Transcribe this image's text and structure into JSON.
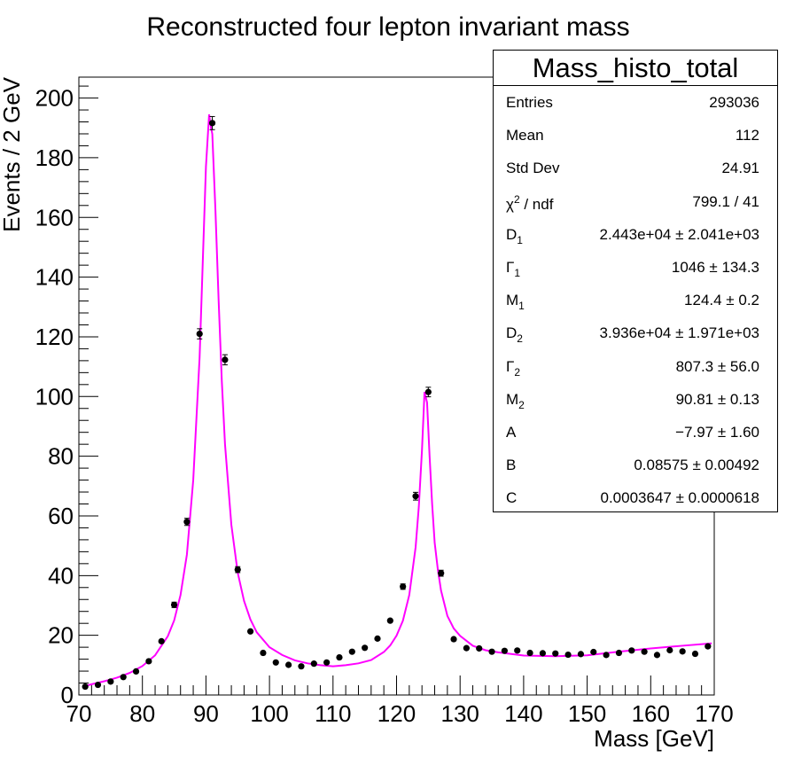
{
  "chart_data": {
    "type": "scatter",
    "title": "Reconstructed four lepton invariant mass",
    "xlabel": "Mass [GeV]",
    "ylabel": "Events / 2 GeV",
    "xlim": [
      70,
      170
    ],
    "ylim": [
      0,
      207
    ],
    "xticks": [
      70,
      80,
      90,
      100,
      110,
      120,
      130,
      140,
      150,
      160,
      170
    ],
    "yticks": [
      0,
      20,
      40,
      60,
      80,
      100,
      120,
      140,
      160,
      180,
      200
    ],
    "series": [
      {
        "type": "points",
        "color": "#000000",
        "x": [
          71,
          73,
          75,
          77,
          79,
          81,
          83,
          85,
          87,
          89,
          91,
          93,
          95,
          97,
          99,
          101,
          103,
          105,
          107,
          109,
          111,
          113,
          115,
          117,
          119,
          121,
          123,
          125,
          127,
          129,
          131,
          133,
          135,
          137,
          139,
          141,
          143,
          145,
          147,
          149,
          151,
          153,
          155,
          157,
          159,
          161,
          163,
          165,
          167,
          169
        ],
        "y": [
          2.8,
          3.4,
          4.5,
          6.0,
          7.9,
          11.3,
          18.0,
          30.2,
          58.0,
          121.0,
          191.6,
          112.3,
          42.0,
          21.3,
          14.1,
          10.9,
          10.1,
          9.6,
          10.5,
          10.9,
          12.6,
          14.5,
          15.8,
          18.9,
          24.9,
          36.3,
          66.6,
          101.5,
          40.8,
          18.7,
          15.7,
          15.6,
          14.5,
          14.8,
          14.9,
          14.1,
          14.0,
          13.9,
          13.5,
          13.7,
          14.4,
          13.4,
          14.1,
          14.9,
          14.5,
          13.4,
          15.0,
          14.6,
          13.8,
          16.3
        ],
        "yerr": [
          0.3,
          0.3,
          0.4,
          0.4,
          0.5,
          0.6,
          0.7,
          0.9,
          1.2,
          1.7,
          2.2,
          1.7,
          1.0,
          0.7,
          0.6,
          0.5,
          0.5,
          0.5,
          0.5,
          0.5,
          0.6,
          0.6,
          0.6,
          0.7,
          0.8,
          0.9,
          1.3,
          1.6,
          1.0,
          0.7,
          0.6,
          0.6,
          0.6,
          0.6,
          0.6,
          0.6,
          0.6,
          0.6,
          0.6,
          0.6,
          0.6,
          0.6,
          0.6,
          0.6,
          0.6,
          0.6,
          0.6,
          0.6,
          0.6,
          0.6
        ]
      },
      {
        "type": "fit-curve",
        "color": "#ff00ff",
        "x": [
          70.8,
          72,
          74,
          76,
          78,
          80,
          82,
          84,
          85,
          86,
          87,
          88,
          89,
          89.5,
          90,
          90.5,
          90.8,
          91,
          91.5,
          92,
          92.5,
          93,
          94,
          95,
          96,
          97,
          98,
          100,
          102,
          104,
          106,
          108,
          110,
          112,
          114,
          116,
          118,
          119,
          120,
          121,
          122,
          123,
          123.5,
          124,
          124.4,
          124.8,
          125.2,
          125.6,
          126,
          126.5,
          127,
          128,
          129,
          130,
          132,
          134,
          136,
          140,
          145,
          150,
          155,
          160,
          165,
          169.6
        ],
        "y": [
          2.9,
          3.6,
          4.6,
          5.8,
          7.4,
          9.7,
          13.3,
          19.7,
          25.0,
          33.5,
          47.0,
          72.0,
          113.0,
          145.0,
          177.0,
          194.5,
          190.0,
          188.0,
          162.0,
          132.0,
          105.0,
          84.0,
          57.0,
          41.0,
          31.5,
          25.3,
          21.0,
          16.0,
          13.4,
          11.6,
          10.6,
          10.0,
          9.6,
          10.0,
          10.6,
          11.7,
          14.4,
          16.6,
          19.9,
          24.9,
          33.5,
          49.5,
          63.0,
          82.0,
          101.5,
          98.0,
          80.0,
          64.0,
          51.0,
          42.0,
          35.0,
          26.5,
          22.3,
          19.8,
          16.5,
          15.0,
          14.3,
          13.2,
          13.0,
          13.3,
          14.5,
          15.6,
          16.5,
          17.3
        ]
      }
    ],
    "stats": {
      "title": "Mass_histo_total",
      "rows": [
        {
          "k": "Entries",
          "v": "293036"
        },
        {
          "k": "Mean",
          "v": "112"
        },
        {
          "k": "Std Dev",
          "v": "24.91"
        },
        {
          "k": "χ",
          "sup": "2",
          "k2": " / ndf",
          "v": "799.1 / 41"
        },
        {
          "k": "D",
          "sub": "1",
          "v": "2.443e+04  ± 2.041e+03"
        },
        {
          "k": "Γ",
          "sub": "1",
          "v": "1046 ± 134.3"
        },
        {
          "k": "M",
          "sub": "1",
          "v": "124.4 ± 0.2"
        },
        {
          "k": "D",
          "sub": "2",
          "v": "3.936e+04  ± 1.971e+03"
        },
        {
          "k": "Γ",
          "sub": "2",
          "v": "807.3 ± 56.0"
        },
        {
          "k": "M",
          "sub": "2",
          "v": "90.81 ± 0.13"
        },
        {
          "k": "A",
          "v": "−7.97 ± 1.60"
        },
        {
          "k": "B",
          "v": "0.08575 ± 0.00492"
        },
        {
          "k": "C",
          "v": "0.0003647  ± 0.0000618"
        }
      ]
    }
  }
}
